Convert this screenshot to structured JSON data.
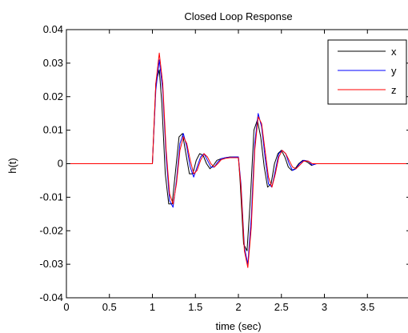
{
  "chart_data": {
    "type": "line",
    "title": "Closed Loop Response",
    "xlabel": "time (sec)",
    "ylabel": "h(t)",
    "xlim": [
      0,
      4
    ],
    "ylim": [
      -0.04,
      0.04
    ],
    "xticks": [
      0,
      0.5,
      1,
      1.5,
      2,
      2.5,
      3,
      3.5
    ],
    "xtick_labels": [
      "0",
      "0.5",
      "1",
      "1.5",
      "2",
      "2.5",
      "3",
      "3.5"
    ],
    "yticks": [
      -0.04,
      -0.03,
      -0.02,
      -0.01,
      0,
      0.01,
      0.02,
      0.03,
      0.04
    ],
    "ytick_labels": [
      "-0.04",
      "-0.03",
      "-0.02",
      "-0.01",
      "0",
      "0.01",
      "0.02",
      "0.03",
      "0.04"
    ],
    "grid": false,
    "legend_position": "top-right",
    "series": [
      {
        "name": "x",
        "color": "#000000",
        "x": [
          0,
          1.0,
          1.04,
          1.08,
          1.11,
          1.15,
          1.19,
          1.23,
          1.27,
          1.31,
          1.35,
          1.39,
          1.43,
          1.47,
          1.51,
          1.55,
          1.59,
          1.63,
          1.67,
          1.71,
          1.75,
          1.8,
          1.85,
          1.9,
          1.95,
          2.0,
          2.02,
          2.06,
          2.1,
          2.14,
          2.18,
          2.22,
          2.26,
          2.3,
          2.34,
          2.38,
          2.42,
          2.46,
          2.5,
          2.54,
          2.58,
          2.62,
          2.66,
          2.7,
          2.75,
          2.8,
          2.85,
          2.9,
          3.0,
          3.2,
          4.0
        ],
        "y": [
          0,
          0,
          0.024,
          0.028,
          0.018,
          -0.003,
          -0.012,
          -0.012,
          -0.002,
          0.008,
          0.009,
          0.003,
          -0.003,
          -0.003,
          0.001,
          0.003,
          0.0025,
          0.0,
          -0.0015,
          -0.0005,
          0.001,
          0.0015,
          0.0018,
          0.002,
          0.002,
          0.002,
          -0.005,
          -0.024,
          -0.026,
          -0.01,
          0.01,
          0.013,
          0.008,
          -0.001,
          -0.007,
          -0.006,
          0.0,
          0.003,
          0.004,
          0.002,
          -0.001,
          -0.002,
          -0.0015,
          0.0,
          0.001,
          0.0005,
          -0.0005,
          0.0,
          0,
          0,
          0
        ]
      },
      {
        "name": "y",
        "color": "#0000ff",
        "x": [
          0,
          1.0,
          1.04,
          1.08,
          1.12,
          1.16,
          1.2,
          1.24,
          1.28,
          1.32,
          1.36,
          1.4,
          1.44,
          1.48,
          1.52,
          1.56,
          1.6,
          1.64,
          1.68,
          1.72,
          1.76,
          1.8,
          1.85,
          1.9,
          1.95,
          2.0,
          2.03,
          2.07,
          2.11,
          2.15,
          2.19,
          2.23,
          2.27,
          2.31,
          2.35,
          2.39,
          2.43,
          2.47,
          2.51,
          2.55,
          2.59,
          2.63,
          2.67,
          2.71,
          2.76,
          2.81,
          2.86,
          2.91,
          3.0,
          3.2,
          4.0
        ],
        "y": [
          0,
          0,
          0.022,
          0.031,
          0.022,
          0.002,
          -0.011,
          -0.013,
          -0.005,
          0.006,
          0.009,
          0.005,
          -0.001,
          -0.004,
          -0.001,
          0.002,
          0.003,
          0.001,
          -0.001,
          -0.001,
          0.0005,
          0.0015,
          0.0018,
          0.0019,
          0.002,
          0.002,
          -0.006,
          -0.025,
          -0.03,
          -0.016,
          0.006,
          0.015,
          0.011,
          0.002,
          -0.006,
          -0.007,
          -0.002,
          0.003,
          0.004,
          0.003,
          0.0,
          -0.002,
          -0.0015,
          0.0,
          0.001,
          0.0008,
          -0.0004,
          0.0,
          0,
          0,
          0
        ]
      },
      {
        "name": "z",
        "color": "#ff0000",
        "x": [
          0,
          1.0,
          1.04,
          1.08,
          1.12,
          1.16,
          1.2,
          1.24,
          1.28,
          1.32,
          1.36,
          1.4,
          1.44,
          1.48,
          1.52,
          1.56,
          1.6,
          1.64,
          1.68,
          1.72,
          1.76,
          1.8,
          1.85,
          1.9,
          1.95,
          2.0,
          2.03,
          2.07,
          2.11,
          2.15,
          2.19,
          2.23,
          2.27,
          2.31,
          2.35,
          2.39,
          2.43,
          2.47,
          2.51,
          2.55,
          2.59,
          2.63,
          2.67,
          2.71,
          2.76,
          2.81,
          2.86,
          2.91,
          3.0,
          3.2,
          4.0
        ],
        "y": [
          0,
          0,
          0.024,
          0.033,
          0.024,
          0.004,
          -0.009,
          -0.012,
          -0.006,
          0.004,
          0.008,
          0.006,
          0.001,
          -0.003,
          -0.002,
          0.001,
          0.003,
          0.002,
          0.0,
          -0.001,
          0.0,
          0.0012,
          0.0016,
          0.0018,
          0.0018,
          0.0018,
          -0.007,
          -0.026,
          -0.031,
          -0.019,
          0.004,
          0.014,
          0.012,
          0.004,
          -0.004,
          -0.007,
          -0.003,
          0.002,
          0.004,
          0.003,
          0.001,
          -0.001,
          -0.0015,
          -0.0005,
          0.0008,
          0.0008,
          0.0,
          0.0,
          0,
          0,
          0
        ]
      }
    ]
  }
}
